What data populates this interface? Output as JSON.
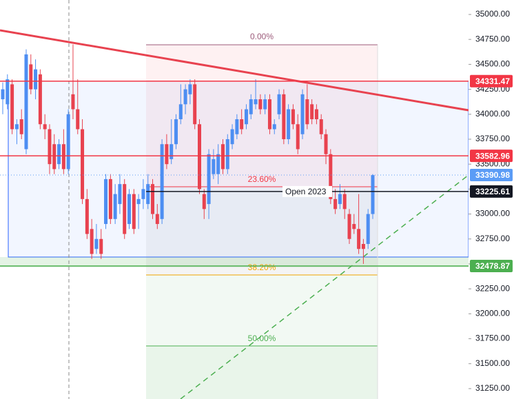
{
  "chart_data": {
    "type": "candlestick",
    "ylim": [
      31146,
      35145
    ],
    "yticks": [
      {
        "value": 35000,
        "label": "35000.00"
      },
      {
        "value": 34750,
        "label": "34750.00"
      },
      {
        "value": 34500,
        "label": "34500.00"
      },
      {
        "value": 34250,
        "label": "34250.00"
      },
      {
        "value": 34000,
        "label": "34000.00"
      },
      {
        "value": 33750,
        "label": "33750.00"
      },
      {
        "value": 33500,
        "label": "33500.00"
      },
      {
        "value": 33250,
        "label": "33250.00"
      },
      {
        "value": 33000,
        "label": "33000.00"
      },
      {
        "value": 32750,
        "label": "32750.00"
      },
      {
        "value": 32500,
        "label": "32500.00"
      },
      {
        "value": 32250,
        "label": "32250.00"
      },
      {
        "value": 32000,
        "label": "32000.00"
      },
      {
        "value": 31750,
        "label": "31750.00"
      },
      {
        "value": 31500,
        "label": "31500.00"
      },
      {
        "value": 31250,
        "label": "31250.00"
      }
    ],
    "up_color": "#4d8ef2",
    "down_color": "#e8424f",
    "candles": [
      [
        34150,
        34320,
        34000,
        34250
      ],
      [
        34100,
        34400,
        34050,
        34350
      ],
      [
        34300,
        34350,
        33800,
        33850
      ],
      [
        33850,
        33950,
        33700,
        33900
      ],
      [
        33950,
        34050,
        33750,
        33800
      ],
      [
        33650,
        34650,
        33600,
        34600
      ],
      [
        34500,
        34600,
        34200,
        34250
      ],
      [
        34250,
        34550,
        34150,
        34450
      ],
      [
        34400,
        34450,
        33850,
        33900
      ],
      [
        33900,
        34000,
        33750,
        33850
      ],
      [
        33850,
        33900,
        33400,
        33500
      ],
      [
        33700,
        33800,
        33400,
        33450
      ],
      [
        33500,
        33750,
        33450,
        33700
      ],
      [
        33700,
        33850,
        33400,
        33450
      ],
      [
        33450,
        34050,
        33400,
        34000
      ],
      [
        34200,
        34700,
        33950,
        34050
      ],
      [
        34050,
        34350,
        33800,
        33850
      ],
      [
        33850,
        33950,
        33100,
        33150
      ],
      [
        33150,
        33250,
        32750,
        32800
      ],
      [
        32850,
        32950,
        32550,
        32600
      ],
      [
        32650,
        32900,
        32600,
        32750
      ],
      [
        32750,
        32850,
        32550,
        32600
      ],
      [
        32900,
        33400,
        32850,
        33350
      ],
      [
        33350,
        33400,
        32900,
        32950
      ],
      [
        32950,
        33300,
        32900,
        33200
      ],
      [
        33100,
        33400,
        33000,
        33300
      ],
      [
        33300,
        33350,
        32750,
        32800
      ],
      [
        32900,
        33250,
        32850,
        33200
      ],
      [
        33200,
        33250,
        32800,
        32850
      ],
      [
        33100,
        33200,
        32850,
        33150
      ],
      [
        33150,
        33350,
        33050,
        33250
      ],
      [
        33100,
        33400,
        33050,
        33300
      ],
      [
        33300,
        33350,
        32950,
        33000
      ],
      [
        33000,
        33100,
        32850,
        32900
      ],
      [
        32950,
        33750,
        32900,
        33700
      ],
      [
        33700,
        33800,
        33450,
        33500
      ],
      [
        33550,
        33950,
        33500,
        33700
      ],
      [
        33700,
        34000,
        33650,
        33950
      ],
      [
        33950,
        34300,
        33900,
        34100
      ],
      [
        34100,
        34300,
        34000,
        34250
      ],
      [
        34200,
        34350,
        34100,
        34300
      ],
      [
        34300,
        34350,
        33850,
        33900
      ],
      [
        33900,
        33950,
        33200,
        33250
      ],
      [
        33200,
        33250,
        32950,
        33050
      ],
      [
        33100,
        33650,
        32950,
        33600
      ],
      [
        33400,
        33650,
        33350,
        33550
      ],
      [
        33400,
        33700,
        33300,
        33600
      ],
      [
        33700,
        33750,
        33400,
        33450
      ],
      [
        33450,
        33800,
        33400,
        33750
      ],
      [
        33700,
        33900,
        33650,
        33850
      ],
      [
        33800,
        34000,
        33750,
        33950
      ],
      [
        33950,
        34050,
        33800,
        33850
      ],
      [
        33900,
        34100,
        33850,
        34050
      ],
      [
        34000,
        34200,
        33950,
        34150
      ],
      [
        34100,
        34350,
        34050,
        34150
      ],
      [
        34150,
        34200,
        34000,
        34050
      ],
      [
        34050,
        34200,
        34000,
        34150
      ],
      [
        34150,
        34200,
        33800,
        33850
      ],
      [
        33850,
        33950,
        33800,
        33900
      ],
      [
        34000,
        34250,
        33950,
        34200
      ],
      [
        34200,
        34250,
        33700,
        33750
      ],
      [
        33750,
        34100,
        33700,
        34050
      ],
      [
        34050,
        34100,
        33850,
        33900
      ],
      [
        33900,
        34000,
        33600,
        33650
      ],
      [
        33800,
        34250,
        33750,
        34200
      ],
      [
        34150,
        34300,
        33850,
        33900
      ],
      [
        34100,
        34150,
        33900,
        33950
      ],
      [
        34050,
        34100,
        33900,
        33950
      ],
      [
        33950,
        34000,
        33750,
        33800
      ],
      [
        33800,
        33850,
        33500,
        33600
      ],
      [
        33600,
        33650,
        33100,
        33150
      ],
      [
        33150,
        33250,
        33000,
        33050
      ],
      [
        33100,
        33300,
        33050,
        33200
      ],
      [
        33200,
        33250,
        32950,
        33050
      ],
      [
        33000,
        33050,
        32700,
        32750
      ],
      [
        32900,
        33000,
        32800,
        32850
      ],
      [
        32850,
        33200,
        32600,
        32650
      ],
      [
        32700,
        32750,
        32500,
        32650
      ],
      [
        32700,
        33050,
        32650,
        33000
      ],
      [
        33000,
        33400,
        32950,
        33390
      ]
    ],
    "price_lines": [
      {
        "value": 34331.47,
        "color": "#f23645"
      },
      {
        "value": 33582.96,
        "color": "#f23645"
      },
      {
        "value": 33390.98,
        "color": "#5b9cf6"
      },
      {
        "value": 33225.61,
        "color": "#131722",
        "name": "Open 2023"
      },
      {
        "value": 32478.87,
        "color": "#4caf50"
      }
    ],
    "fib_levels": [
      {
        "label": "0.00%",
        "color": "#9c5b7a"
      },
      {
        "label": "23.60%",
        "color": "#f23645"
      },
      {
        "label": "38.20%",
        "color": "#f0a500"
      },
      {
        "label": "50.00%",
        "color": "#4caf50"
      }
    ]
  }
}
